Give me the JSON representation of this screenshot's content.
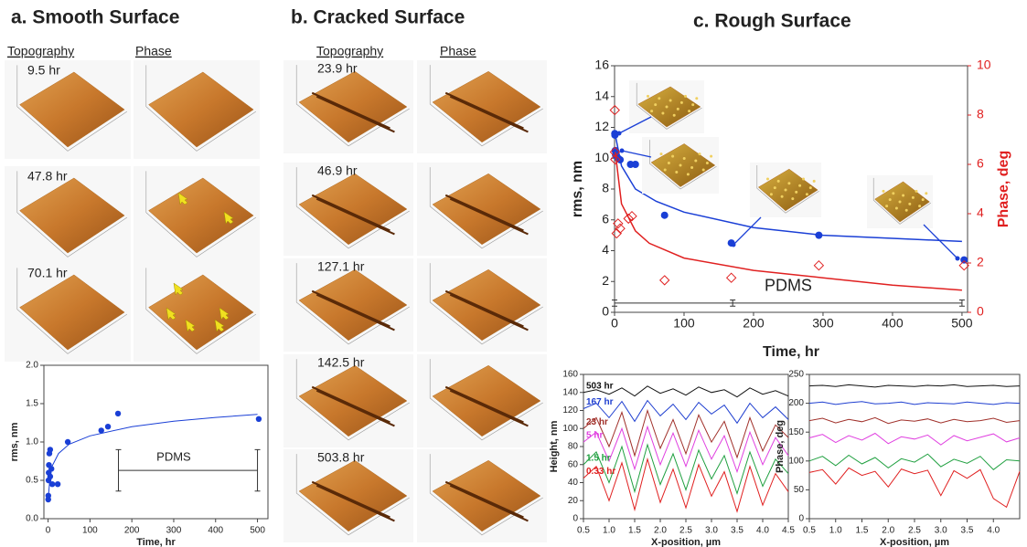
{
  "figure": {
    "panels": [
      {
        "title": "a. Smooth Surface",
        "column_headers": [
          "Topography",
          "Phase"
        ],
        "image_labels": [
          "9.5 hr",
          "47.8 hr",
          "70.1 hr"
        ]
      },
      {
        "title": "b. Cracked Surface",
        "column_headers": [
          "Topography",
          "Phase"
        ],
        "image_labels": [
          "23.9 hr",
          "46.9 hr",
          "127.1 hr",
          "142.5 hr",
          "503.8 hr"
        ]
      },
      {
        "title": "c. Rough Surface"
      }
    ]
  },
  "chart_data": [
    {
      "type": "scatter",
      "xlabel": "Time, hr",
      "ylabel": "rms, nm",
      "xlim": [
        -10,
        525
      ],
      "ylim": [
        0,
        2
      ],
      "xticks": [
        0,
        100,
        200,
        300,
        400,
        500
      ],
      "yticks": [
        {
          "value": 0,
          "label": "0.0"
        },
        0.5,
        {
          "value": 1,
          "label": "1.0"
        },
        1.5,
        {
          "value": 2,
          "label": "2.0"
        }
      ],
      "series": [
        {
          "mode": "markers",
          "color": "#1a3fd6",
          "x": [
            0.33,
            0.5,
            1,
            1.5,
            2,
            3,
            5,
            5,
            8,
            10,
            23,
            47,
            127,
            143,
            167,
            503
          ],
          "values": [
            0.25,
            0.3,
            0.5,
            0.6,
            0.7,
            0.85,
            0.9,
            0.55,
            0.65,
            0.45,
            0.45,
            1.0,
            1.15,
            1.2,
            1.37,
            1.3
          ]
        },
        {
          "mode": "line",
          "color": "#1a3fd6",
          "x": [
            1,
            5,
            10,
            25,
            50,
            100,
            200,
            300,
            400,
            500
          ],
          "values": [
            0.3,
            0.57,
            0.69,
            0.85,
            0.97,
            1.08,
            1.2,
            1.27,
            1.32,
            1.36
          ]
        }
      ],
      "reference": {
        "label": "PDMS",
        "value": 0.63,
        "error": 0.27,
        "x": [
          168,
          500
        ]
      }
    },
    {
      "type": "scatter",
      "xlabel": "Time, hr",
      "ylabel": "rms, nm",
      "y2label": "Phase, deg",
      "xlim": [
        0,
        508
      ],
      "ylim": [
        0,
        16
      ],
      "y2lim": [
        0,
        10
      ],
      "xticks": [
        0,
        100,
        200,
        300,
        400,
        500
      ],
      "yticks": [
        0,
        2,
        4,
        6,
        8,
        10,
        12,
        14,
        16
      ],
      "y2ticks": [
        0,
        2,
        4,
        6,
        8,
        10
      ],
      "y2color": "#e02020",
      "series": [
        {
          "mode": "markers",
          "color": "#1a3fd6",
          "x": [
            0.33,
            0.5,
            1,
            1.5,
            5,
            8,
            23,
            30,
            72,
            168,
            294,
            503
          ],
          "values": [
            11.6,
            11.5,
            10.5,
            10.2,
            10.0,
            9.9,
            9.6,
            9.6,
            6.3,
            4.5,
            5.0,
            3.4
          ]
        },
        {
          "mode": "line",
          "color": "#1a3fd6",
          "x": [
            1,
            10,
            30,
            60,
            100,
            200,
            300,
            400,
            500
          ],
          "values": [
            11.5,
            9.5,
            8.0,
            7.2,
            6.5,
            5.5,
            5.0,
            4.8,
            4.6
          ]
        },
        {
          "mode": "markers-open",
          "axis": "y2",
          "color": "#e02020",
          "x": [
            0.33,
            0.5,
            1,
            3,
            5,
            8,
            20,
            25,
            72,
            168,
            294,
            503
          ],
          "values": [
            8.2,
            6.5,
            6.2,
            3.2,
            3.6,
            3.4,
            3.8,
            3.9,
            1.3,
            1.4,
            1.9,
            1.9
          ]
        },
        {
          "mode": "line",
          "axis": "y2",
          "color": "#e02020",
          "x": [
            1,
            10,
            30,
            50,
            100,
            200,
            300,
            400,
            500
          ],
          "values": [
            6.5,
            4.4,
            3.3,
            2.8,
            2.2,
            1.7,
            1.4,
            1.1,
            0.9
          ]
        }
      ],
      "reference": {
        "label": "PDMS",
        "value": 0.6,
        "error": 0.2,
        "x": [
          0,
          170,
          500
        ]
      }
    },
    {
      "type": "line",
      "xlabel": "X-position, µm",
      "ylabel": "Height, nm",
      "xlim": [
        0.5,
        4.5
      ],
      "ylim": [
        0,
        160
      ],
      "xticks": [
        0.5,
        {
          "value": 1,
          "label": "1.0"
        },
        1.5,
        {
          "value": 2,
          "label": "2.0"
        },
        2.5,
        {
          "value": 3,
          "label": "3.0"
        },
        3.5,
        {
          "value": 4,
          "label": "4.0"
        },
        4.5
      ],
      "yticks": [
        0,
        20,
        40,
        60,
        80,
        100,
        120,
        140,
        160
      ],
      "x": [
        0.5,
        0.75,
        1,
        1.25,
        1.5,
        1.75,
        2,
        2.25,
        2.5,
        2.75,
        3,
        3.25,
        3.5,
        3.75,
        4,
        4.25,
        4.5
      ],
      "series": [
        {
          "name": "503 hr",
          "color": "#111111",
          "values": [
            140,
            143,
            138,
            145,
            136,
            147,
            139,
            144,
            137,
            146,
            140,
            143,
            135,
            145,
            138,
            142,
            136
          ]
        },
        {
          "name": "167 hr",
          "color": "#1f3fd0",
          "values": [
            122,
            128,
            112,
            130,
            108,
            131,
            114,
            127,
            110,
            129,
            116,
            126,
            106,
            128,
            112,
            124,
            110
          ]
        },
        {
          "name": "23 hr",
          "color": "#a0302a",
          "values": [
            100,
            112,
            80,
            118,
            70,
            120,
            78,
            110,
            72,
            115,
            85,
            108,
            68,
            112,
            75,
            104,
            90
          ]
        },
        {
          "name": "5 hr",
          "color": "#e040e0",
          "values": [
            85,
            96,
            64,
            100,
            55,
            102,
            60,
            95,
            58,
            98,
            66,
            92,
            52,
            96,
            60,
            90,
            70
          ]
        },
        {
          "name": "1.5 hr",
          "color": "#20a040",
          "values": [
            60,
            74,
            40,
            80,
            30,
            82,
            38,
            72,
            32,
            76,
            44,
            70,
            28,
            74,
            36,
            66,
            50
          ]
        },
        {
          "name": "0.33 hr",
          "color": "#e02020",
          "values": [
            45,
            58,
            20,
            62,
            10,
            66,
            18,
            55,
            12,
            60,
            25,
            52,
            8,
            58,
            15,
            50,
            30
          ]
        }
      ]
    },
    {
      "type": "line",
      "xlabel": "X-position, µm",
      "ylabel": "Phase, deg",
      "xlim": [
        0.5,
        4.5
      ],
      "ylim": [
        0,
        250
      ],
      "xticks": [
        0.5,
        {
          "value": 1,
          "label": "1.0"
        },
        1.5,
        {
          "value": 2,
          "label": "2.0"
        },
        2.5,
        {
          "value": 3,
          "label": "3.0"
        },
        3.5,
        {
          "value": 4,
          "label": "4.0"
        }
      ],
      "yticks": [
        0,
        50,
        100,
        150,
        200,
        250
      ],
      "x": [
        0.5,
        0.75,
        1,
        1.25,
        1.5,
        1.75,
        2,
        2.25,
        2.5,
        2.75,
        3,
        3.25,
        3.5,
        3.75,
        4,
        4.25,
        4.5
      ],
      "series": [
        {
          "color": "#111111",
          "values": [
            230,
            231,
            229,
            232,
            230,
            228,
            231,
            230,
            229,
            231,
            230,
            232,
            229,
            230,
            231,
            229,
            230
          ]
        },
        {
          "color": "#1f3fd0",
          "values": [
            200,
            202,
            198,
            201,
            203,
            199,
            200,
            202,
            198,
            201,
            200,
            199,
            202,
            200,
            198,
            201,
            200
          ]
        },
        {
          "color": "#a0302a",
          "values": [
            170,
            174,
            166,
            172,
            168,
            175,
            165,
            171,
            169,
            173,
            166,
            172,
            168,
            170,
            174,
            167,
            170
          ]
        },
        {
          "color": "#e040e0",
          "values": [
            140,
            146,
            132,
            144,
            136,
            148,
            130,
            142,
            138,
            145,
            128,
            144,
            135,
            141,
            147,
            133,
            140
          ]
        },
        {
          "color": "#20a040",
          "values": [
            100,
            108,
            92,
            110,
            95,
            106,
            88,
            104,
            98,
            112,
            90,
            103,
            96,
            108,
            85,
            102,
            100
          ]
        },
        {
          "color": "#e02020",
          "values": [
            80,
            85,
            60,
            88,
            75,
            82,
            55,
            86,
            78,
            84,
            40,
            83,
            70,
            85,
            35,
            20,
            82
          ]
        }
      ]
    }
  ]
}
